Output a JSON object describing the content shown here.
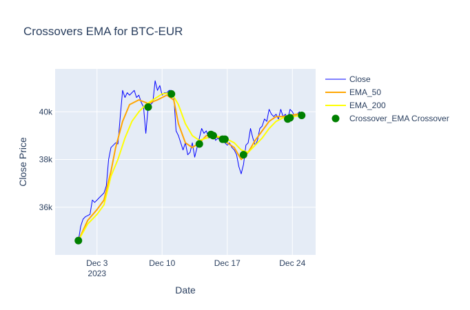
{
  "chart_data": {
    "type": "line",
    "title": "Crossovers EMA for BTC-EUR",
    "xlabel": "Date",
    "ylabel": "Close Price",
    "x_range": [
      "2023-11-28T12:00",
      "2023-12-26T12:00"
    ],
    "y_range": [
      34000,
      41800
    ],
    "x_ticks": [
      {
        "value": "2023-12-03",
        "label": "Dec 3",
        "sublabel": "2023"
      },
      {
        "value": "2023-12-10",
        "label": "Dec 10",
        "sublabel": ""
      },
      {
        "value": "2023-12-17",
        "label": "Dec 17",
        "sublabel": ""
      },
      {
        "value": "2023-12-24",
        "label": "Dec 24",
        "sublabel": ""
      }
    ],
    "y_ticks": [
      {
        "value": 36000,
        "label": "36k"
      },
      {
        "value": 38000,
        "label": "38k"
      },
      {
        "value": 40000,
        "label": "40k"
      }
    ],
    "grid": true,
    "legend_position": "right",
    "series": [
      {
        "name": "Close",
        "kind": "line",
        "color": "#0000ff",
        "x": [
          "2023-12-01T00:00",
          "2023-12-01T06:00",
          "2023-12-01T12:00",
          "2023-12-01T18:00",
          "2023-12-02T00:00",
          "2023-12-02T06:00",
          "2023-12-02T12:00",
          "2023-12-02T18:00",
          "2023-12-03T00:00",
          "2023-12-03T06:00",
          "2023-12-03T12:00",
          "2023-12-03T18:00",
          "2023-12-04T00:00",
          "2023-12-04T06:00",
          "2023-12-04T12:00",
          "2023-12-04T18:00",
          "2023-12-05T00:00",
          "2023-12-05T06:00",
          "2023-12-05T12:00",
          "2023-12-05T18:00",
          "2023-12-06T00:00",
          "2023-12-06T06:00",
          "2023-12-06T12:00",
          "2023-12-06T18:00",
          "2023-12-07T00:00",
          "2023-12-07T06:00",
          "2023-12-07T12:00",
          "2023-12-07T18:00",
          "2023-12-08T00:00",
          "2023-12-08T06:00",
          "2023-12-08T12:00",
          "2023-12-08T18:00",
          "2023-12-09T00:00",
          "2023-12-09T06:00",
          "2023-12-09T12:00",
          "2023-12-09T18:00",
          "2023-12-10T00:00",
          "2023-12-10T06:00",
          "2023-12-10T12:00",
          "2023-12-10T18:00",
          "2023-12-11T00:00",
          "2023-12-11T06:00",
          "2023-12-11T12:00",
          "2023-12-11T18:00",
          "2023-12-12T00:00",
          "2023-12-12T06:00",
          "2023-12-12T12:00",
          "2023-12-12T18:00",
          "2023-12-13T00:00",
          "2023-12-13T06:00",
          "2023-12-13T12:00",
          "2023-12-13T18:00",
          "2023-12-14T00:00",
          "2023-12-14T06:00",
          "2023-12-14T12:00",
          "2023-12-14T18:00",
          "2023-12-15T00:00",
          "2023-12-15T06:00",
          "2023-12-15T12:00",
          "2023-12-15T18:00",
          "2023-12-16T00:00",
          "2023-12-16T06:00",
          "2023-12-16T12:00",
          "2023-12-16T18:00",
          "2023-12-17T00:00",
          "2023-12-17T06:00",
          "2023-12-17T12:00",
          "2023-12-17T18:00",
          "2023-12-18T00:00",
          "2023-12-18T06:00",
          "2023-12-18T12:00",
          "2023-12-18T18:00",
          "2023-12-19T00:00",
          "2023-12-19T06:00",
          "2023-12-19T12:00",
          "2023-12-19T18:00",
          "2023-12-20T00:00",
          "2023-12-20T06:00",
          "2023-12-20T12:00",
          "2023-12-20T18:00",
          "2023-12-21T00:00",
          "2023-12-21T06:00",
          "2023-12-21T12:00",
          "2023-12-21T18:00",
          "2023-12-22T00:00",
          "2023-12-22T06:00",
          "2023-12-22T12:00",
          "2023-12-22T18:00",
          "2023-12-23T00:00",
          "2023-12-23T06:00",
          "2023-12-23T12:00",
          "2023-12-23T18:00",
          "2023-12-24T00:00",
          "2023-12-24T06:00",
          "2023-12-24T12:00",
          "2023-12-24T18:00",
          "2023-12-25T00:00"
        ],
        "values": [
          34600,
          35200,
          35500,
          35600,
          35650,
          35700,
          36300,
          36200,
          36300,
          36400,
          36500,
          36600,
          36900,
          38000,
          38500,
          38600,
          38700,
          38650,
          39800,
          40900,
          40600,
          40800,
          40700,
          40800,
          40900,
          40600,
          40700,
          40400,
          40200,
          39100,
          40200,
          40300,
          40400,
          41300,
          40900,
          41100,
          40700,
          40800,
          40800,
          40900,
          40900,
          40700,
          39200,
          39000,
          38700,
          38400,
          38700,
          38200,
          38300,
          38700,
          38100,
          38500,
          38900,
          39300,
          39100,
          39200,
          38900,
          39000,
          39100,
          38800,
          38900,
          38800,
          38900,
          38700,
          38600,
          38700,
          38500,
          38400,
          38200,
          37700,
          37400,
          37800,
          38600,
          38700,
          39300,
          38900,
          38600,
          38800,
          39300,
          39400,
          39700,
          39600,
          40100,
          39900,
          39800,
          39900,
          39700,
          40100,
          39800,
          39900,
          39700,
          40100,
          40000,
          39800,
          39900,
          40000,
          39900
        ]
      },
      {
        "name": "EMA_50",
        "kind": "line",
        "color": "#ffa500",
        "x": [
          "2023-12-01T00:00",
          "2023-12-02T00:00",
          "2023-12-03T00:00",
          "2023-12-03T18:00",
          "2023-12-04T12:00",
          "2023-12-05T00:00",
          "2023-12-05T18:00",
          "2023-12-06T12:00",
          "2023-12-07T12:00",
          "2023-12-08T12:00",
          "2023-12-09T12:00",
          "2023-12-10T12:00",
          "2023-12-11T06:00",
          "2023-12-11T18:00",
          "2023-12-12T12:00",
          "2023-12-13T06:00",
          "2023-12-14T00:00",
          "2023-12-14T18:00",
          "2023-12-15T12:00",
          "2023-12-16T06:00",
          "2023-12-17T00:00",
          "2023-12-17T18:00",
          "2023-12-18T12:00",
          "2023-12-19T06:00",
          "2023-12-20T00:00",
          "2023-12-20T18:00",
          "2023-12-21T12:00",
          "2023-12-22T06:00",
          "2023-12-23T00:00",
          "2023-12-23T18:00",
          "2023-12-24T12:00",
          "2023-12-25T00:00"
        ],
        "values": [
          34600,
          35450,
          35900,
          36300,
          37500,
          38500,
          39600,
          40300,
          40500,
          40350,
          40500,
          40700,
          40500,
          39500,
          38700,
          38500,
          38700,
          39000,
          39000,
          38900,
          38700,
          38500,
          38000,
          38300,
          38800,
          39200,
          39600,
          39800,
          39800,
          39850,
          39900,
          39900
        ]
      },
      {
        "name": "EMA_200",
        "kind": "line",
        "color": "#ffff00",
        "x": [
          "2023-12-01T00:00",
          "2023-12-02T00:00",
          "2023-12-03T00:00",
          "2023-12-03T18:00",
          "2023-12-04T12:00",
          "2023-12-05T06:00",
          "2023-12-06T00:00",
          "2023-12-06T18:00",
          "2023-12-07T12:00",
          "2023-12-08T06:00",
          "2023-12-09T00:00",
          "2023-12-10T00:00",
          "2023-12-11T00:00",
          "2023-12-11T18:00",
          "2023-12-12T12:00",
          "2023-12-13T06:00",
          "2023-12-14T00:00",
          "2023-12-14T18:00",
          "2023-12-15T12:00",
          "2023-12-16T06:00",
          "2023-12-17T00:00",
          "2023-12-17T18:00",
          "2023-12-18T12:00",
          "2023-12-19T06:00",
          "2023-12-20T00:00",
          "2023-12-20T18:00",
          "2023-12-21T12:00",
          "2023-12-22T06:00",
          "2023-12-23T00:00",
          "2023-12-24T00:00",
          "2023-12-25T00:00"
        ],
        "values": [
          34600,
          35300,
          35700,
          36100,
          37300,
          38000,
          38900,
          39600,
          40000,
          40300,
          40500,
          40750,
          40800,
          40300,
          39500,
          39000,
          38800,
          38900,
          39000,
          38950,
          38850,
          38700,
          38400,
          38300,
          38600,
          38900,
          39300,
          39600,
          39750,
          39800,
          39850
        ]
      },
      {
        "name": "Crossover_EMA Crossover",
        "kind": "markers",
        "color": "#008000",
        "x": [
          "2023-12-01T00:00",
          "2023-12-08T12:00",
          "2023-12-11T00:00",
          "2023-12-14T00:00",
          "2023-12-15T06:00",
          "2023-12-15T12:00",
          "2023-12-16T12:00",
          "2023-12-16T18:00",
          "2023-12-18T18:00",
          "2023-12-23T12:00",
          "2023-12-23T18:00",
          "2023-12-25T00:00"
        ],
        "values": [
          34600,
          40200,
          40750,
          38650,
          39050,
          39000,
          38850,
          38850,
          38200,
          39700,
          39750,
          39850
        ]
      }
    ]
  }
}
